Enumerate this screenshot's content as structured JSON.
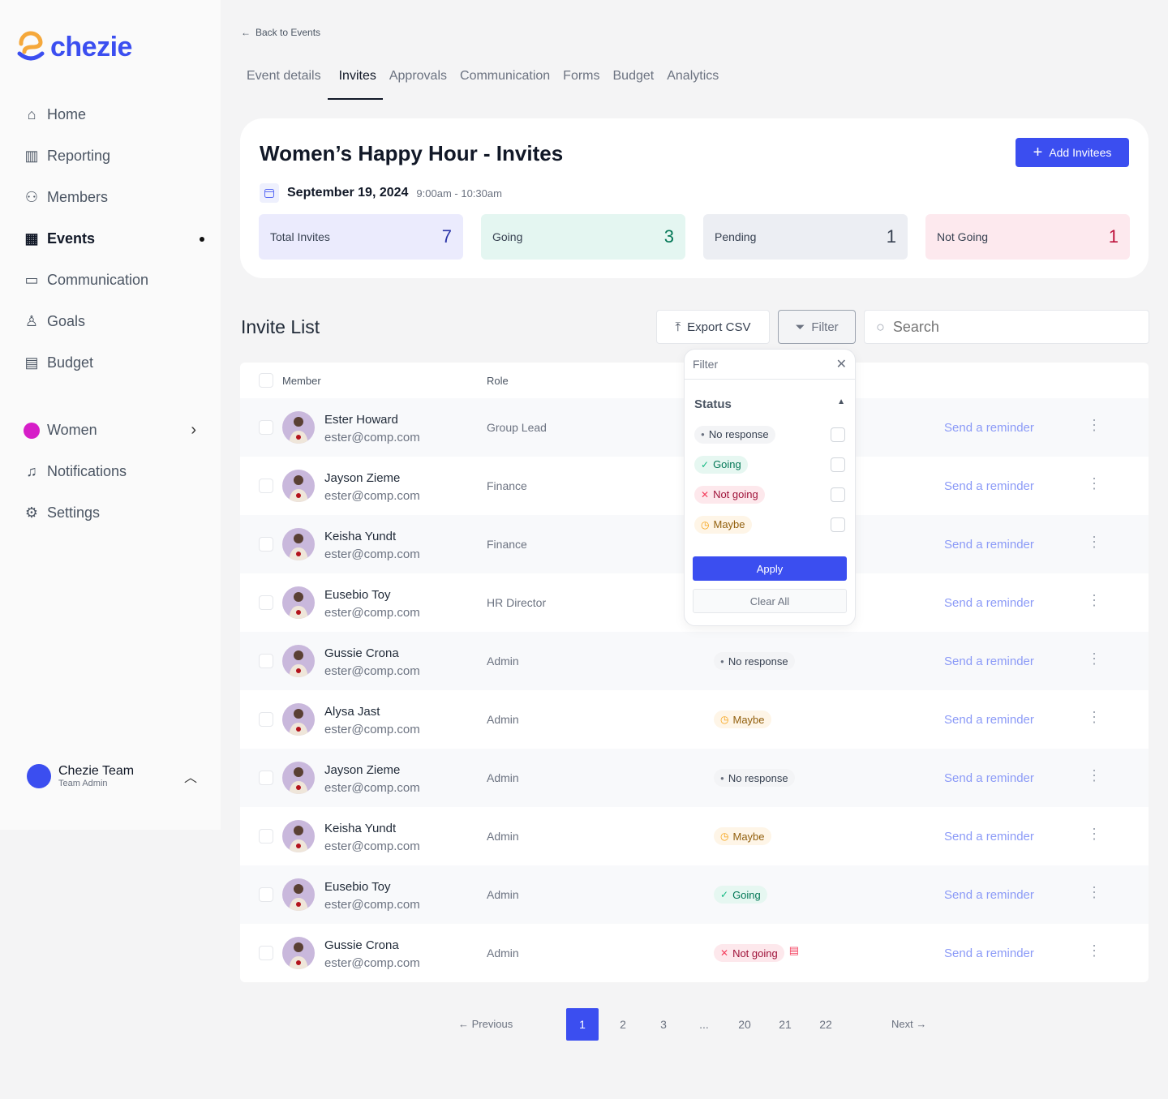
{
  "brand": {
    "name": "chezie"
  },
  "sidebar": {
    "items": [
      {
        "label": "Home",
        "icon": "home-icon"
      },
      {
        "label": "Reporting",
        "icon": "chart-icon"
      },
      {
        "label": "Members",
        "icon": "users-icon"
      },
      {
        "label": "Events",
        "icon": "calendar-icon",
        "active": true
      },
      {
        "label": "Communication",
        "icon": "chat-icon"
      },
      {
        "label": "Goals",
        "icon": "goals-icon"
      },
      {
        "label": "Budget",
        "icon": "wallet-icon"
      }
    ],
    "group": {
      "label": "Women"
    },
    "bottom": [
      {
        "label": "Notifications",
        "icon": "bell-icon"
      },
      {
        "label": "Settings",
        "icon": "gear-icon"
      }
    ],
    "user": {
      "name": "Chezie Team",
      "role": "Team Admin"
    }
  },
  "back_label": "Back to Events",
  "tabs": [
    "Event details",
    "Invites",
    "Approvals",
    "Communication",
    "Forms",
    "Budget",
    "Analytics"
  ],
  "event": {
    "title": "Women’s Happy Hour - Invites",
    "add_label": "Add Invitees",
    "date": "September 19, 2024",
    "time": "9:00am - 10:30am",
    "stats": [
      {
        "label": "Total Invites",
        "value": "7",
        "bg": "#ebebfd",
        "color": "#2b35a8"
      },
      {
        "label": "Going",
        "value": "3",
        "bg": "#e4f6f1",
        "color": "#047857"
      },
      {
        "label": "Pending",
        "value": "1",
        "bg": "#eceef3",
        "color": "#374151"
      },
      {
        "label": "Not Going",
        "value": "1",
        "bg": "#fde9ee",
        "color": "#be123c"
      }
    ]
  },
  "list": {
    "title": "Invite List",
    "export_label": "Export CSV",
    "filter_label": "Filter",
    "search_placeholder": "Search",
    "col_member": "Member",
    "col_role": "Role",
    "reminder_label": "Send a reminder",
    "rows": [
      {
        "name": "Ester Howard",
        "email": "ester@comp.com",
        "role": "Group Lead",
        "status": null
      },
      {
        "name": "Jayson Zieme",
        "email": "ester@comp.com",
        "role": "Finance",
        "status": null
      },
      {
        "name": "Keisha Yundt",
        "email": "ester@comp.com",
        "role": "Finance",
        "status": null
      },
      {
        "name": "Eusebio Toy",
        "email": "ester@comp.com",
        "role": "HR Director",
        "status": null
      },
      {
        "name": "Gussie Crona",
        "email": "ester@comp.com",
        "role": "Admin",
        "status": "No response"
      },
      {
        "name": "Alysa Jast",
        "email": "ester@comp.com",
        "role": "Admin",
        "status": "Maybe"
      },
      {
        "name": "Jayson Zieme",
        "email": "ester@comp.com",
        "role": "Admin",
        "status": "No response"
      },
      {
        "name": "Keisha Yundt",
        "email": "ester@comp.com",
        "role": "Admin",
        "status": "Maybe"
      },
      {
        "name": "Eusebio Toy",
        "email": "ester@comp.com",
        "role": "Admin",
        "status": "Going"
      },
      {
        "name": "Gussie Crona",
        "email": "ester@comp.com",
        "role": "Admin",
        "status": "Not going",
        "note": true
      }
    ]
  },
  "filter": {
    "title": "Filter",
    "section": "Status",
    "options": [
      "No response",
      "Going",
      "Not going",
      "Maybe"
    ],
    "apply_label": "Apply",
    "clear_label": "Clear All"
  },
  "pagination": {
    "previous": "Previous",
    "next": "Next",
    "pages": [
      "1",
      "2",
      "3",
      "...",
      "20",
      "21",
      "22"
    ],
    "current": "1"
  }
}
